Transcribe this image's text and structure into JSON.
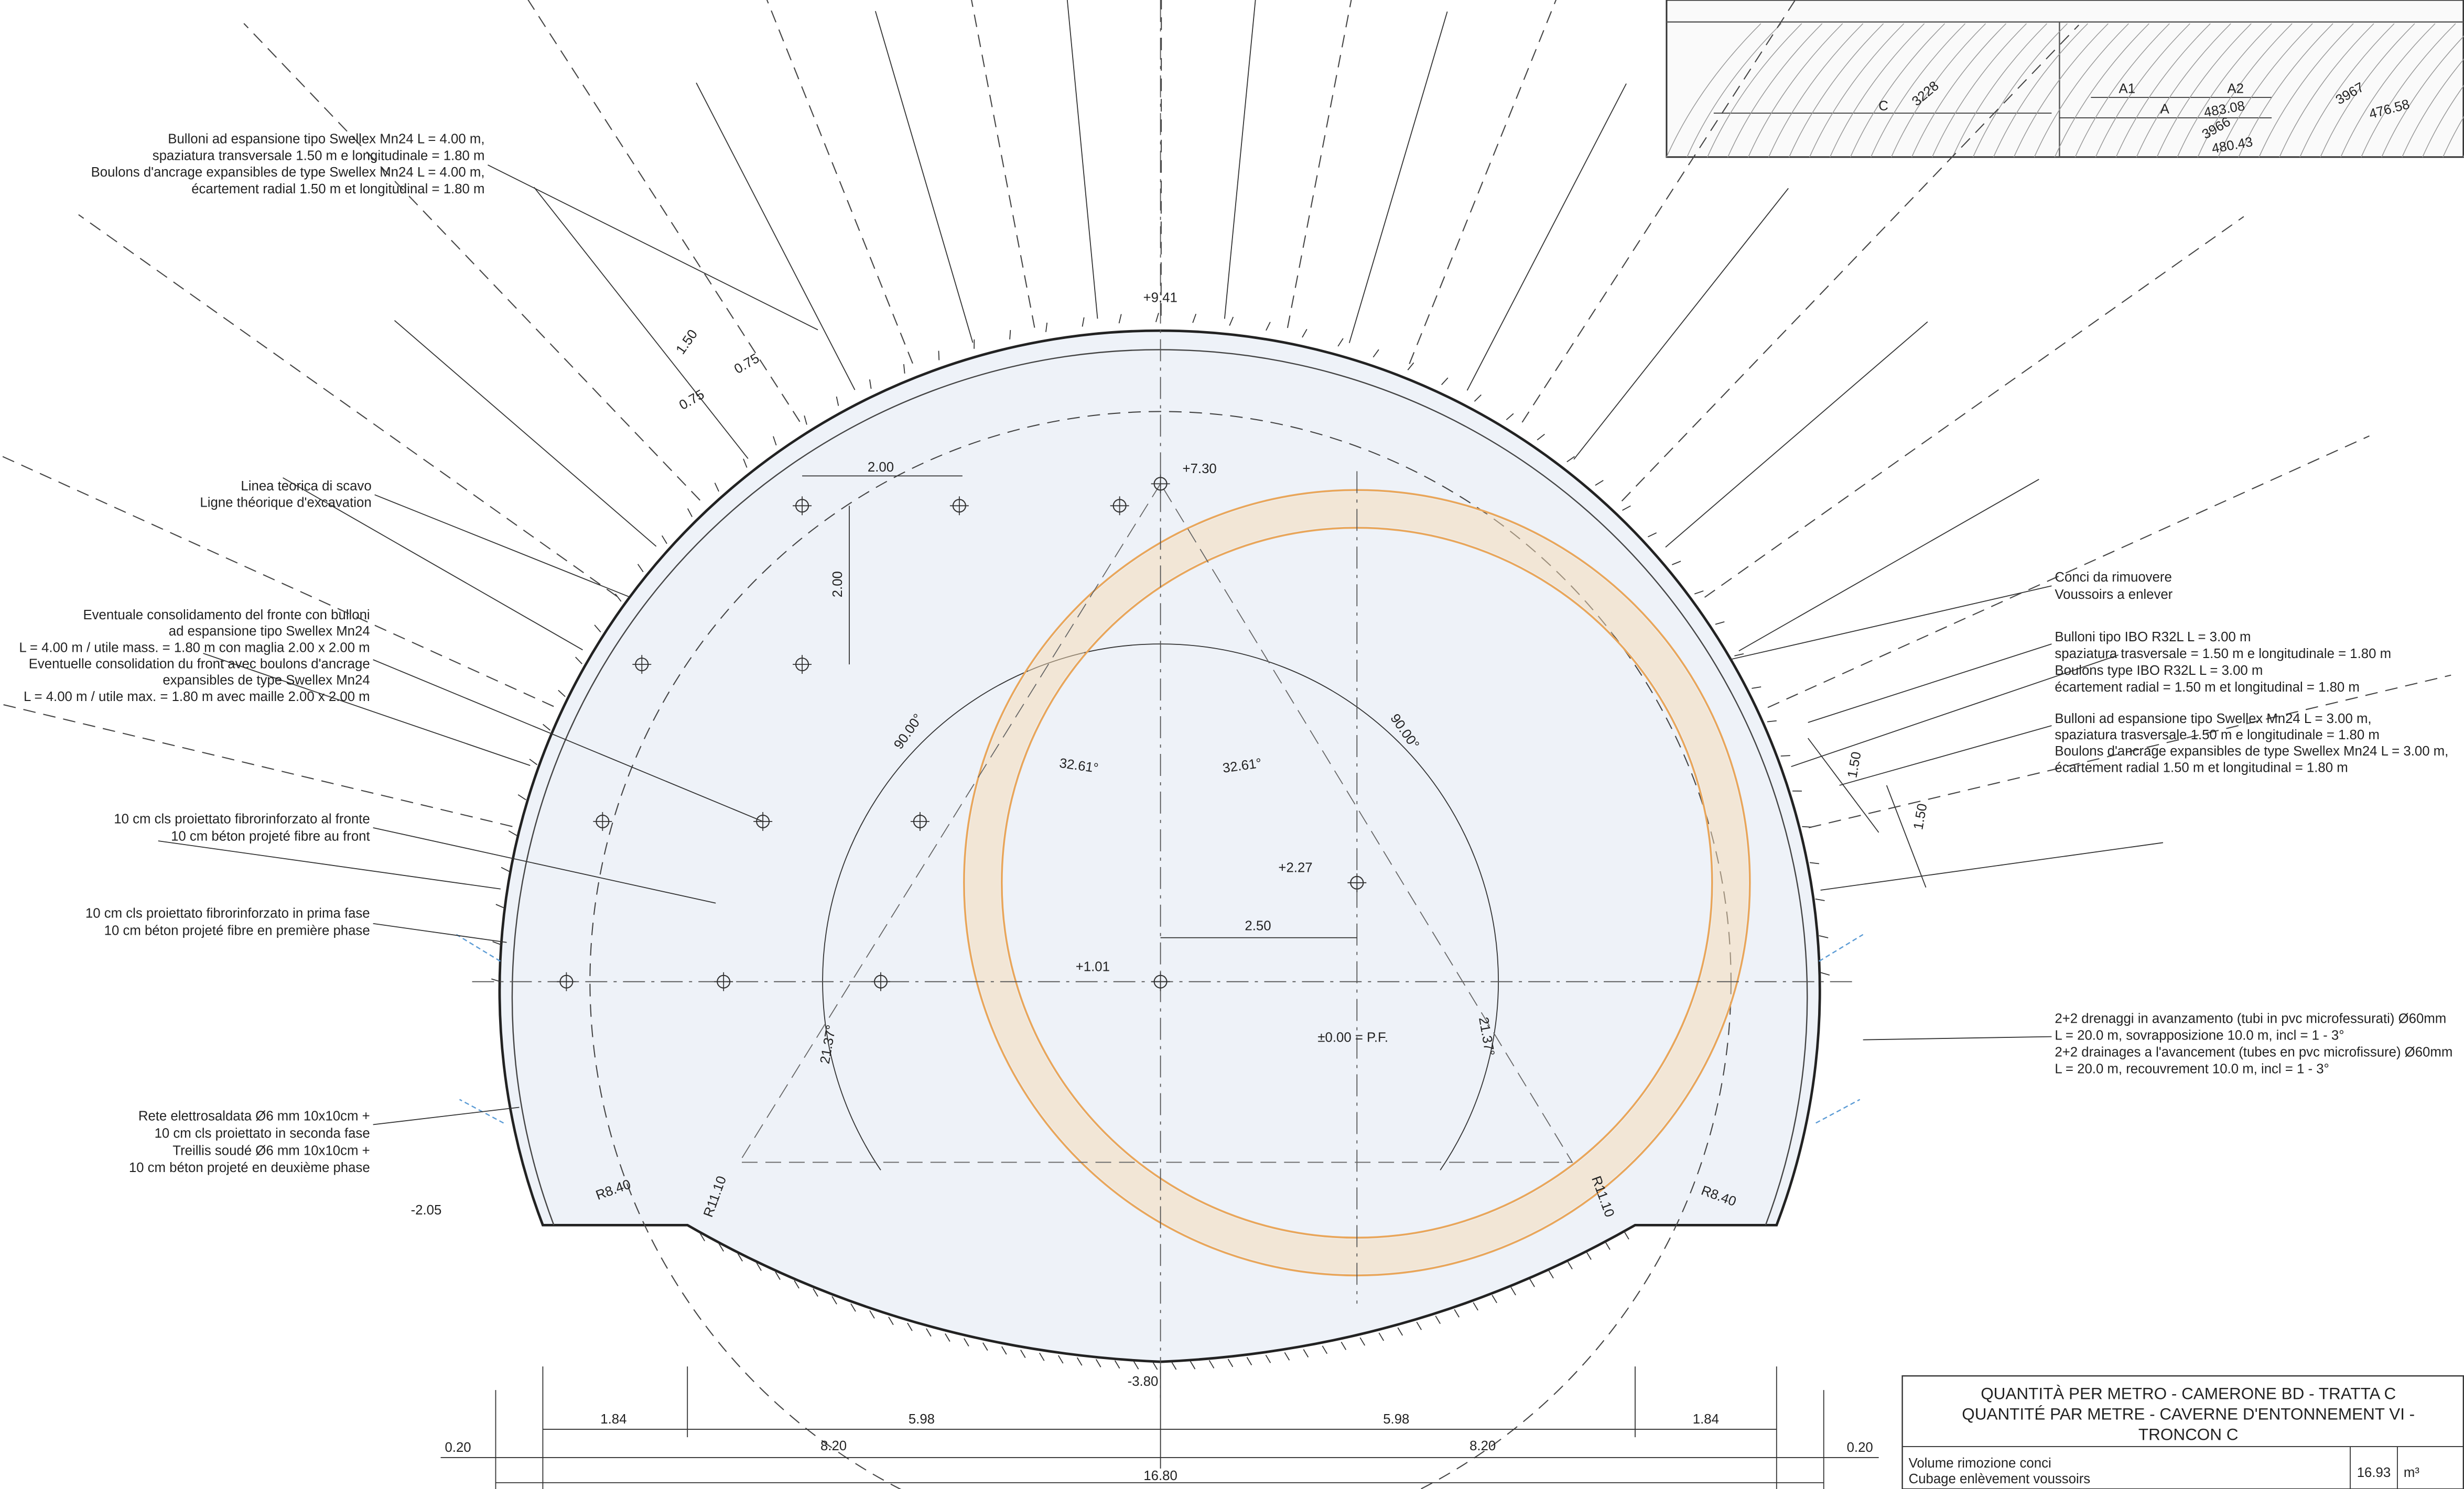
{
  "annotations": {
    "swellex_top": [
      "Bulloni ad espansione tipo Swellex Mn24 L = 4.00 m,",
      "spaziatura transversale 1.50 m e longitudinale = 1.80 m",
      "Boulons d'ancrage expansibles de type Swellex Mn24 L = 4.00 m,",
      "écartement radial 1.50 m et longitudinal = 1.80 m"
    ],
    "excavation_line": [
      "Linea teorica di scavo",
      "Ligne théorique d'excavation"
    ],
    "face_consolidation": [
      "Eventuale consolidamento del fronte con bulloni",
      "ad espansione tipo Swellex Mn24",
      "L = 4.00 m / utile mass. = 1.80 m con maglia 2.00 x 2.00 m",
      "Eventuelle consolidation du front avec boulons d'ancrage",
      "expansibles de type Swellex Mn24",
      "L = 4.00 m / utile max. = 1.80 m avec maille 2.00 x 2.00 m"
    ],
    "face_shotcrete": [
      "10 cm cls proiettato fibrorinforzato al fronte",
      "10 cm béton projeté fibre au front"
    ],
    "first_phase": [
      "10 cm cls proiettato fibrorinforzato in prima fase",
      "10 cm béton projeté fibre en première phase"
    ],
    "mesh": [
      "Rete elettrosaldata Ø6 mm 10x10cm +",
      "10 cm cls proiettato in seconda fase",
      "Treillis soudé Ø6 mm 10x10cm +",
      "10 cm béton projeté en deuxième phase"
    ],
    "conci": [
      "Conci da rimuovere",
      "Voussoirs a enlever"
    ],
    "ibo": [
      "Bulloni tipo IBO R32L L = 3.00 m",
      "spaziatura trasversale = 1.50 m e longitudinale = 1.80 m",
      "Boulons type IBO R32L L = 3.00 m",
      "écartement radial = 1.50 m et longitudinal = 1.80 m"
    ],
    "swellex_right": [
      "Bulloni ad espansione tipo Swellex Mn24 L = 3.00 m,",
      "spaziatura trasversale 1.50 m e longitudinale = 1.80 m",
      "Boulons d'ancrage expansibles de type Swellex Mn24 L = 3.00 m,",
      "écartement radial 1.50 m et longitudinal = 1.80 m"
    ],
    "drains": [
      "2+2 drenaggi in avanzamento (tubi in pvc microfessurati) Ø60mm",
      "L = 20.0 m, sovrapposizione 10.0 m, incl = 1 - 3°",
      "2+2 drainages a l'avancement (tubes en pvc microfissure) Ø60mm",
      "L = 20.0 m, recouvrement 10.0 m, incl = 1 - 3°"
    ]
  },
  "levels": [
    "+9.41",
    "+7.30",
    "+2.27",
    "+1.01",
    "±0.00 = P.F.",
    "-2.05",
    "-3.80"
  ],
  "dims": [
    "1.50",
    "0.75",
    "0.75",
    "2.00",
    "2.00",
    "32.61°",
    "32.61°",
    "90.00°",
    "90.00°",
    "2.50",
    "21.37°",
    "21.37°",
    "R8.40",
    "R8.40",
    "R11.10",
    "R11.10",
    "1.50",
    "1.50"
  ],
  "bottom_dims": [
    "0.20",
    "1.84",
    "5.98",
    "5.98",
    "1.84",
    "0.20",
    "8.20",
    "8.20",
    "16.80"
  ],
  "inset": [
    "C",
    "A1",
    "A",
    "A2",
    "483.08",
    "476.58",
    "480.43",
    "3967",
    "3966",
    "3228"
  ],
  "table": {
    "title": [
      "QUANTITÀ PER METRO - CAMERONE BD - TRATTA C",
      "QUANTITÉ PAR METRE - CAVERNE D'ENTONNEMENT VI -",
      "TRONCON C"
    ],
    "rows": [
      [
        [
          "Volume rimozione conci",
          "Cubage enlèvement voussoirs"
        ],
        "16.93",
        "m³"
      ]
    ]
  }
}
